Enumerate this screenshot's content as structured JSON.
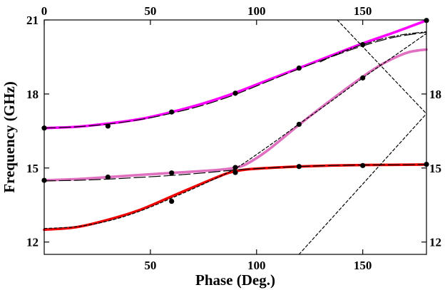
{
  "chart_data": {
    "type": "line",
    "xlabel": "Phase (Deg.)",
    "ylabel": "Frequency (GHz)",
    "xlim": [
      0,
      180
    ],
    "ylim": [
      11.5,
      21
    ],
    "x_ticks_bottom": [
      50,
      100,
      150
    ],
    "x_ticks_top": [
      0,
      50,
      100,
      150
    ],
    "y_ticks_left": [
      12,
      15,
      18,
      21
    ],
    "y_ticks_right": [
      12,
      15,
      18
    ],
    "grid": false,
    "series": [
      {
        "color": "#ff00ff",
        "style": "solid",
        "x": [
          0,
          15,
          30,
          45,
          60,
          75,
          90,
          105,
          120,
          135,
          150,
          165,
          180
        ],
        "y": [
          16.62,
          16.67,
          16.8,
          16.98,
          17.27,
          17.62,
          18.05,
          18.55,
          19.05,
          19.55,
          20.05,
          20.5,
          20.98
        ]
      },
      {
        "color": "#e070c0",
        "style": "solid",
        "x": [
          0,
          15,
          30,
          45,
          60,
          75,
          85,
          90,
          95,
          105,
          120,
          135,
          150,
          160,
          170,
          175,
          180
        ],
        "y": [
          14.5,
          14.55,
          14.63,
          14.72,
          14.8,
          14.88,
          14.95,
          15.02,
          15.15,
          15.7,
          16.75,
          17.75,
          18.7,
          19.25,
          19.65,
          19.75,
          19.8
        ]
      },
      {
        "color": "#ee0000",
        "style": "solid",
        "x": [
          0,
          15,
          30,
          45,
          60,
          75,
          85,
          90,
          95,
          105,
          120,
          135,
          150,
          165,
          180
        ],
        "y": [
          12.5,
          12.6,
          12.9,
          13.3,
          13.85,
          14.4,
          14.75,
          14.87,
          14.94,
          15.0,
          15.06,
          15.1,
          15.12,
          15.13,
          15.14
        ]
      },
      {
        "color": "#000000",
        "style": "longdash",
        "x": [
          0,
          15,
          30,
          45,
          60,
          75,
          90,
          105,
          120,
          135,
          150,
          165,
          180
        ],
        "y": [
          16.62,
          16.67,
          16.78,
          16.96,
          17.22,
          17.55,
          17.98,
          18.5,
          19.02,
          19.5,
          19.95,
          20.3,
          20.5
        ]
      },
      {
        "color": "#000000",
        "style": "longdash",
        "x": [
          0,
          15,
          30,
          45,
          60,
          75,
          90,
          105,
          120,
          135,
          150,
          165,
          180
        ],
        "y": [
          14.48,
          14.5,
          14.55,
          14.62,
          14.7,
          14.8,
          14.92,
          15.0,
          15.06,
          15.1,
          15.12,
          15.13,
          15.14
        ]
      },
      {
        "color": "#000000",
        "style": "dashdot",
        "x": [
          130,
          140,
          150,
          160,
          170,
          180
        ],
        "y": [
          19.3,
          19.7,
          20.0,
          20.25,
          20.42,
          20.52
        ]
      },
      {
        "color": "#000000",
        "style": "shortdash",
        "x": [
          0,
          15,
          30,
          45,
          60,
          75,
          90,
          105,
          120,
          135,
          150,
          165,
          180
        ],
        "y": [
          12.55,
          12.62,
          12.85,
          13.25,
          13.78,
          14.35,
          14.98,
          15.85,
          16.78,
          17.7,
          18.65,
          19.55,
          20.45
        ]
      },
      {
        "color": "#000000",
        "style": "shortdash",
        "x": [
          138,
          180
        ],
        "y": [
          21.0,
          17.2
        ]
      },
      {
        "color": "#000000",
        "style": "shortdash",
        "x": [
          120,
          180
        ],
        "y": [
          11.5,
          17.2
        ]
      }
    ],
    "markers": {
      "color": "#000000",
      "x": [
        0,
        30,
        60,
        90,
        120,
        150,
        180,
        0,
        30,
        60,
        90,
        120,
        150,
        60,
        90,
        120,
        150,
        180
      ],
      "y": [
        16.62,
        16.7,
        17.27,
        18.03,
        19.05,
        20.0,
        20.98,
        14.5,
        14.63,
        14.8,
        15.02,
        16.77,
        18.65,
        13.65,
        14.82,
        15.06,
        15.1,
        15.15
      ]
    }
  }
}
